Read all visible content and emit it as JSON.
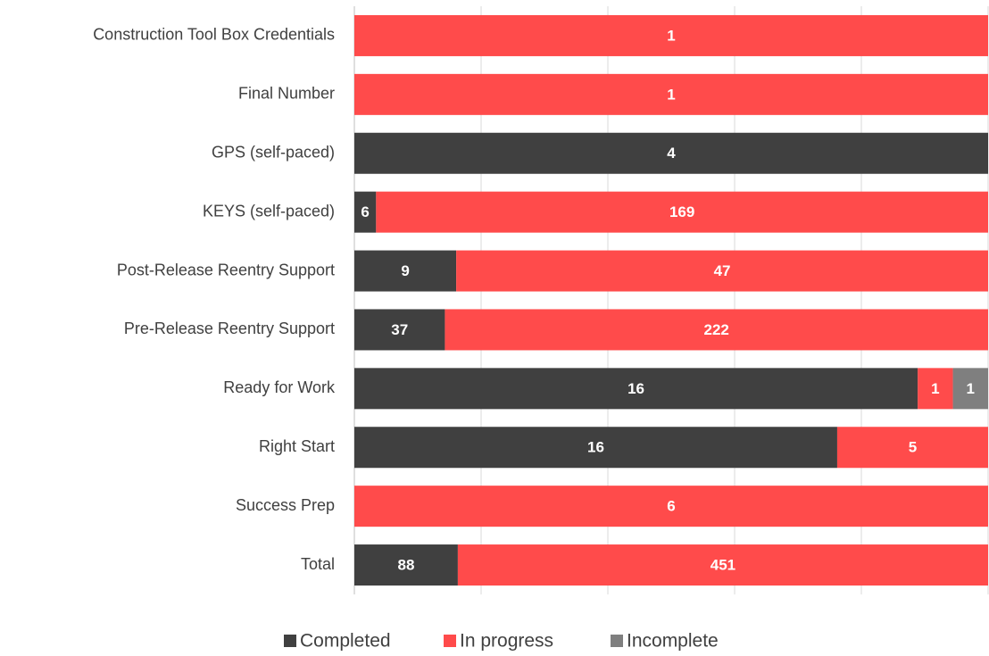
{
  "chart_data": {
    "type": "bar",
    "orientation": "horizontal",
    "stacking": "percent",
    "categories": [
      "Construction Tool Box Credentials",
      "Final Number",
      "GPS (self-paced)",
      "KEYS (self-paced)",
      "Post-Release Reentry Support",
      "Pre-Release Reentry Support",
      "Ready for Work",
      "Right Start",
      "Success Prep",
      "Total"
    ],
    "series": [
      {
        "name": "Completed",
        "color": "#404040",
        "values": [
          null,
          null,
          4,
          6,
          9,
          37,
          16,
          16,
          null,
          88
        ]
      },
      {
        "name": "In progress",
        "color": "#ff4b4b",
        "values": [
          1,
          1,
          null,
          169,
          47,
          222,
          1,
          5,
          6,
          451
        ]
      },
      {
        "name": "Incomplete",
        "color": "#7f7f7f",
        "values": [
          null,
          null,
          null,
          null,
          null,
          null,
          1,
          null,
          null,
          null
        ]
      }
    ],
    "xlim": [
      0,
      100
    ],
    "xticks": [
      0,
      20,
      40,
      60,
      80,
      100
    ],
    "grid": true,
    "legend": "bottom"
  }
}
